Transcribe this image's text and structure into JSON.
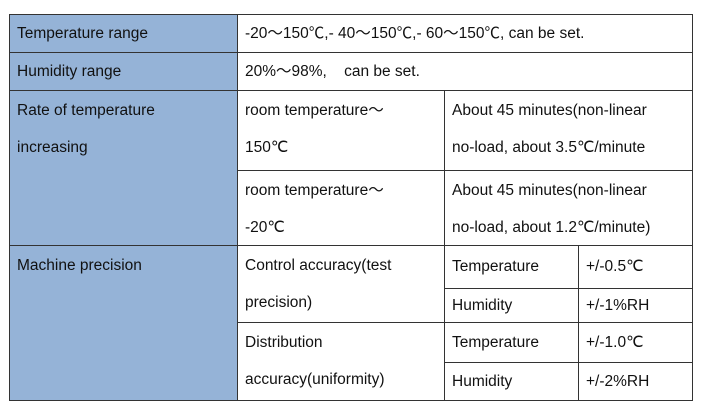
{
  "table": {
    "rows": [
      {
        "label": [
          "Temperature range"
        ],
        "value": [
          "-20～150℃,- 40～150℃,- 60～150℃, can be set."
        ]
      },
      {
        "label": [
          "Humidity range"
        ],
        "value": [
          "20%～98%,    can be set."
        ]
      },
      {
        "label": [
          "Rate of temperature",
          "increasing"
        ],
        "items": [
          {
            "range": [
              "room temperature～",
              "150℃"
            ],
            "time": [
              "About 45 minutes(non-linear",
              "no-load, about 3.5℃/minute"
            ]
          },
          {
            "range": [
              "room temperature～",
              "-20℃"
            ],
            "time": [
              "About 45 minutes(non-linear",
              "no-load, about 1.2℃/minute)"
            ]
          }
        ]
      },
      {
        "label": [
          "Machine precision"
        ],
        "items": [
          {
            "name": [
              "Control accuracy(test",
              "precision)"
            ],
            "entries": [
              {
                "param": "Temperature",
                "value": "+/-0.5℃"
              },
              {
                "param": "Humidity",
                "value": "+/-1%RH"
              }
            ]
          },
          {
            "name": [
              "Distribution",
              "accuracy(uniformity)"
            ],
            "entries": [
              {
                "param": "Temperature",
                "value": "+/-1.0℃"
              },
              {
                "param": "Humidity",
                "value": "+/-2%RH"
              }
            ]
          }
        ]
      }
    ]
  }
}
